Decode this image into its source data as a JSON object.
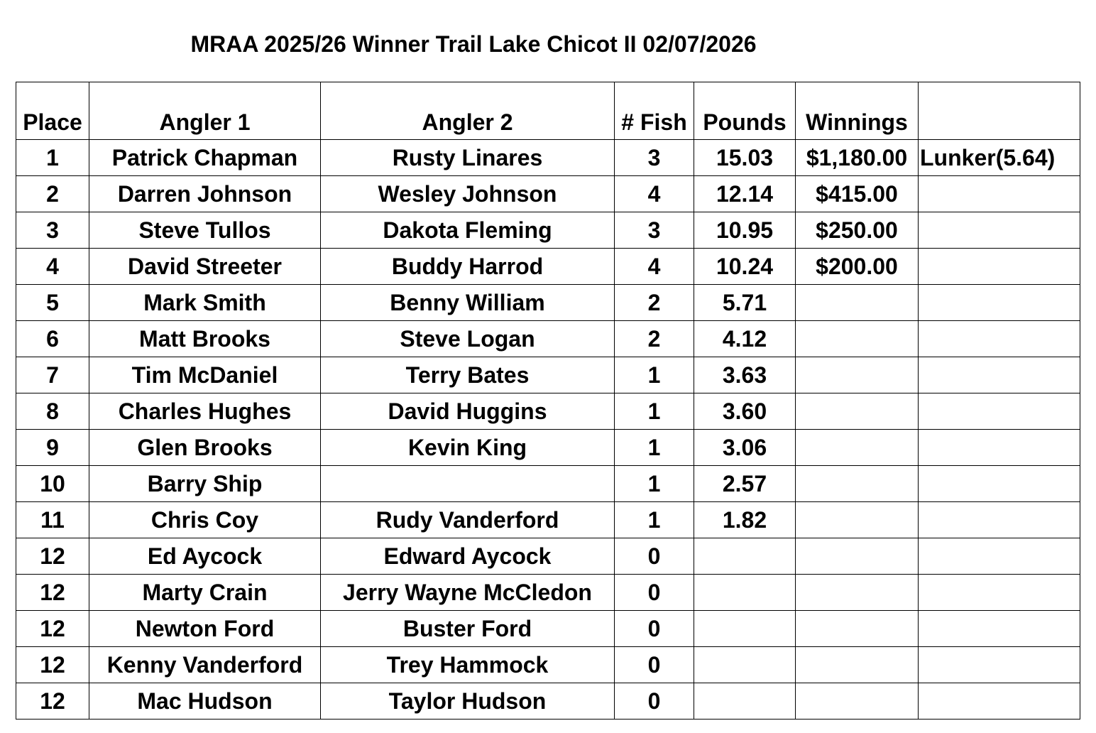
{
  "title": "MRAA 2025/26 Winner Trail Lake Chicot II 02/07/2026",
  "columns": [
    "Place",
    "Angler 1",
    "Angler 2",
    "# Fish",
    "Pounds",
    "Winnings",
    ""
  ],
  "rows": [
    {
      "place": "1",
      "angler1": "Patrick Chapman",
      "angler2": "Rusty Linares",
      "fish": "3",
      "pounds": "15.03",
      "winnings": "$1,180.00",
      "note": "Lunker(5.64)"
    },
    {
      "place": "2",
      "angler1": "Darren Johnson",
      "angler2": "Wesley Johnson",
      "fish": "4",
      "pounds": "12.14",
      "winnings": "$415.00",
      "note": ""
    },
    {
      "place": "3",
      "angler1": "Steve Tullos",
      "angler2": "Dakota Fleming",
      "fish": "3",
      "pounds": "10.95",
      "winnings": "$250.00",
      "note": ""
    },
    {
      "place": "4",
      "angler1": "David Streeter",
      "angler2": "Buddy Harrod",
      "fish": "4",
      "pounds": "10.24",
      "winnings": "$200.00",
      "note": ""
    },
    {
      "place": "5",
      "angler1": "Mark Smith",
      "angler2": "Benny William",
      "fish": "2",
      "pounds": "5.71",
      "winnings": "",
      "note": ""
    },
    {
      "place": "6",
      "angler1": "Matt Brooks",
      "angler2": "Steve Logan",
      "fish": "2",
      "pounds": "4.12",
      "winnings": "",
      "note": ""
    },
    {
      "place": "7",
      "angler1": "Tim McDaniel",
      "angler2": "Terry Bates",
      "fish": "1",
      "pounds": "3.63",
      "winnings": "",
      "note": ""
    },
    {
      "place": "8",
      "angler1": "Charles Hughes",
      "angler2": "David Huggins",
      "fish": "1",
      "pounds": "3.60",
      "winnings": "",
      "note": ""
    },
    {
      "place": "9",
      "angler1": "Glen Brooks",
      "angler2": "Kevin King",
      "fish": "1",
      "pounds": "3.06",
      "winnings": "",
      "note": ""
    },
    {
      "place": "10",
      "angler1": "Barry Ship",
      "angler2": "",
      "fish": "1",
      "pounds": "2.57",
      "winnings": "",
      "note": ""
    },
    {
      "place": "11",
      "angler1": "Chris Coy",
      "angler2": "Rudy Vanderford",
      "fish": "1",
      "pounds": "1.82",
      "winnings": "",
      "note": ""
    },
    {
      "place": "12",
      "angler1": "Ed Aycock",
      "angler2": "Edward Aycock",
      "fish": "0",
      "pounds": "",
      "winnings": "",
      "note": ""
    },
    {
      "place": "12",
      "angler1": "Marty Crain",
      "angler2": "Jerry Wayne McCledon",
      "fish": "0",
      "pounds": "",
      "winnings": "",
      "note": ""
    },
    {
      "place": "12",
      "angler1": "Newton Ford",
      "angler2": "Buster Ford",
      "fish": "0",
      "pounds": "",
      "winnings": "",
      "note": ""
    },
    {
      "place": "12",
      "angler1": "Kenny Vanderford",
      "angler2": "Trey Hammock",
      "fish": "0",
      "pounds": "",
      "winnings": "",
      "note": ""
    },
    {
      "place": "12",
      "angler1": "Mac Hudson",
      "angler2": "Taylor Hudson",
      "fish": "0",
      "pounds": "",
      "winnings": "",
      "note": ""
    }
  ]
}
